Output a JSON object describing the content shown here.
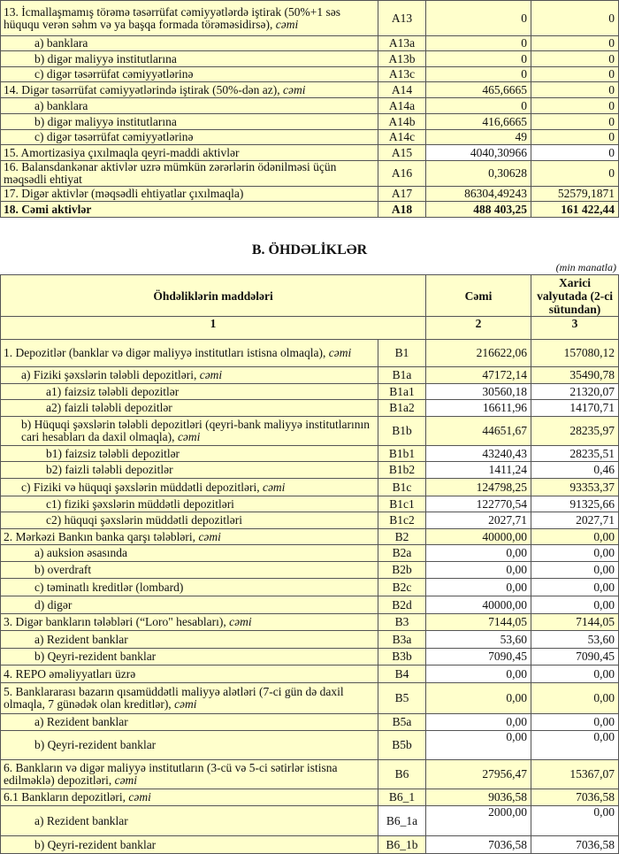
{
  "assets_table": {
    "rows": [
      {
        "label": "13. İcmallaşmamış törəmə təsərrüfat cəmiyyətlərdə iştirak (50%+1 səs hüququ verən səhm və ya başqa formada törəməsidirsə), ",
        "suffix": "cəmi",
        "code": "A13",
        "total": "0",
        "foreign": "0"
      },
      {
        "label": "a) banklara",
        "code": "A13a",
        "total": "0",
        "foreign": "0"
      },
      {
        "label": "b) digər maliyyə institutlarına",
        "code": "A13b",
        "total": "0",
        "foreign": "0"
      },
      {
        "label": "c) digər təsərrüfat cəmiyyətlərinə",
        "code": "A13c",
        "total": "0",
        "foreign": "0"
      },
      {
        "label": "14. Digər təsərrüfat cəmiyyətlərində iştirak (50%-dən az), ",
        "suffix": "cəmi",
        "code": "A14",
        "total": "465,6665",
        "foreign": "0"
      },
      {
        "label": "a) banklara",
        "code": "A14a",
        "total": "0",
        "foreign": "0"
      },
      {
        "label": "b) digər maliyyə institutlarına",
        "code": "A14b",
        "total": "416,6665",
        "foreign": "0"
      },
      {
        "label": "c) digər təsərrüfat cəmiyyətlərinə",
        "code": "A14c",
        "total": "49",
        "foreign": "0"
      },
      {
        "label": "15. Amortizasiya çıxılmaqla qeyri-maddi aktivlər",
        "code": "A15",
        "total": "4040,30966",
        "foreign": "0"
      },
      {
        "label": "16. Balansdankənar aktivlər uzrə mümkün zərərlərin ödənilməsi üçün məqsədli ehtiyat",
        "code": "A16",
        "total": "0,30628",
        "foreign": "0"
      },
      {
        "label": "17. Digər aktivlər (məqsədli ehtiyatlar çıxılmaqla)",
        "code": "A17",
        "total": "86304,49243",
        "foreign": "52579,1871"
      },
      {
        "label": "18. Cəmi aktivlər",
        "code": "A18",
        "total": "488 403,25",
        "foreign": "161 422,44"
      }
    ]
  },
  "liabilities": {
    "title": "B. ÖHDƏLİKLƏR",
    "unit": "(min manatla)",
    "headers": {
      "items": "Öhdəliklərin maddələri",
      "total": "Cəmi",
      "foreign": "Xarici valyutada (2-ci sütundan)"
    },
    "col_numbers": [
      "1",
      "2",
      "3"
    ],
    "rows": [
      {
        "label": "1. Depozitlər (banklar və digər maliyyə institutları istisna olmaqla), ",
        "suffix": "cəmi",
        "code": "B1",
        "total": "216622,06",
        "foreign": "157080,12"
      },
      {
        "label": "a)  Fiziki şəxslərin tələbli depozitləri, ",
        "suffix": "cəmi",
        "code": "B1a",
        "total": "47172,14",
        "foreign": "35490,78"
      },
      {
        "label": "a1) faizsiz tələbli depozitlər",
        "code": "B1a1",
        "total": "30560,18",
        "foreign": "21320,07"
      },
      {
        "label": "a2) faizli tələbli depozitlər",
        "code": "B1a2",
        "total": "16611,96",
        "foreign": "14170,71"
      },
      {
        "label": "b) Hüquqi şəxslərin tələbli depozitləri (qeyri-bank maliyyə institutlarının cari hesabları da daxil olmaqla), ",
        "suffix": "cəmi",
        "code": "B1b",
        "total": "44651,67",
        "foreign": "28235,97"
      },
      {
        "label": "b1) faizsiz tələbli depozitlər",
        "code": "B1b1",
        "total": "43240,43",
        "foreign": "28235,51"
      },
      {
        "label": "b2) faizli tələbli depozitlər",
        "code": "B1b2",
        "total": "1411,24",
        "foreign": "0,46"
      },
      {
        "label": "c) Fiziki və hüquqi şəxslərin müddətli depozitləri, ",
        "suffix": "cəmi",
        "code": "B1c",
        "total": "124798,25",
        "foreign": "93353,37"
      },
      {
        "label": "c1) fiziki şəxslərin müddətli depozitləri",
        "code": "B1c1",
        "total": "122770,54",
        "foreign": "91325,66"
      },
      {
        "label": "c2) hüquqi şəxslərin müddətli depozitləri",
        "code": "B1c2",
        "total": "2027,71",
        "foreign": "2027,71"
      },
      {
        "label": "2. Mərkəzi Bankın banka qarşı tələbləri, ",
        "suffix": "cəmi",
        "code": "B2",
        "total": "40000,00",
        "foreign": "0,00"
      },
      {
        "label": "a) auksion əsasında",
        "code": "B2a",
        "total": "0,00",
        "foreign": "0,00"
      },
      {
        "label": "b) overdraft",
        "code": "B2b",
        "total": "0,00",
        "foreign": "0,00"
      },
      {
        "label": "c) təminatlı kreditlər (lombard)",
        "code": "B2c",
        "total": "0,00",
        "foreign": "0,00"
      },
      {
        "label": "d) digər",
        "code": "B2d",
        "total": "40000,00",
        "foreign": "0,00"
      },
      {
        "label": "3. Digər bankların tələbləri (“Loro\" hesabları), ",
        "suffix": "cəmi",
        "code": "B3",
        "total": "7144,05",
        "foreign": "7144,05"
      },
      {
        "label": "a) Rezident banklar",
        "code": "B3a",
        "total": "53,60",
        "foreign": "53,60"
      },
      {
        "label": "b) Qeyri-rezident banklar",
        "code": "B3b",
        "total": "7090,45",
        "foreign": "7090,45"
      },
      {
        "label": "4. REPO əməliyyatları  üzrə",
        "code": "B4",
        "total": "0,00",
        "foreign": "0,00"
      },
      {
        "label": "5. Banklararası bazarın qısamüddətli maliyyə alətləri (7-ci gün də daxil olmaqla, 7 günədək olan kreditlər), ",
        "suffix": "cəmi",
        "code": "B5",
        "total": "0,00",
        "foreign": "0,00"
      },
      {
        "label": "a) Rezident banklar",
        "code": "B5a",
        "total": "0,00",
        "foreign": "0,00"
      },
      {
        "label": "b) Qeyri-rezident banklar",
        "code": "B5b",
        "total": "0,00",
        "foreign": "0,00"
      },
      {
        "label": "6. Bankların və digər maliyyə institutların (3-cü və 5-ci sətirlər istisna edilməklə) depozitləri, ",
        "suffix": "cəmi",
        "code": "B6",
        "total": "27956,47",
        "foreign": "15367,07"
      },
      {
        "label": "6.1  Bankların depozitləri, ",
        "suffix": "cəmi",
        "code": "B6_1",
        "total": "9036,58",
        "foreign": "7036,58"
      },
      {
        "label": "a) Rezident banklar",
        "code": "B6_1a",
        "total": "2000,00",
        "foreign": "0,00"
      },
      {
        "label": "b) Qeyri-rezident banklar",
        "code": "B6_1b",
        "total": "7036,58",
        "foreign": "7036,58"
      }
    ]
  }
}
